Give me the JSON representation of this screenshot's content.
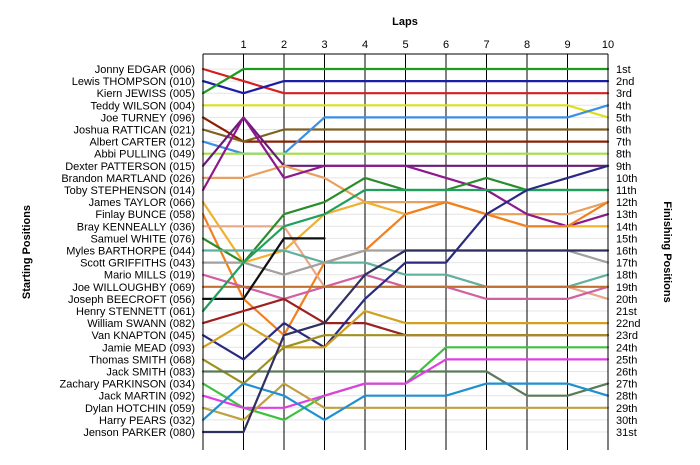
{
  "chart_data": {
    "type": "line",
    "title": "Laps",
    "xlabel": "Laps",
    "ylabel_left": "Starting Positions",
    "ylabel_right": "Finishing Positions",
    "laps": [
      1,
      2,
      3,
      4,
      5,
      6,
      7,
      8,
      9,
      10
    ],
    "xlim": [
      0,
      10
    ],
    "ylim": [
      1,
      31
    ],
    "y_inverted": true,
    "grid": "horizontal",
    "starting_labels": [
      "Jonny EDGAR (006)",
      "Lewis THOMPSON (010)",
      "Kiern JEWISS (005)",
      "Teddy WILSON (004)",
      "Joe TURNEY (096)",
      "Joshua RATTICAN (021)",
      "Albert CARTER (012)",
      "Abbi PULLING (049)",
      "Dexter PATTERSON (015)",
      "Brandon MARTLAND (026)",
      "Toby STEPHENSON (014)",
      "James TAYLOR (066)",
      "Finlay BUNCE (058)",
      "Bray KENNEALLY (036)",
      "Samuel WHITE (076)",
      "Myles BARTHORPE (044)",
      "Scott GRIFFITHS (043)",
      "Mario MILLS (019)",
      "Joe WILLOUGHBY (069)",
      "Joseph BEECROFT (056)",
      "Henry STENNETT (061)",
      "William SWANN (082)",
      "Van KNAPTON (045)",
      "Jamie MEAD (093)",
      "Thomas SMITH (068)",
      "Jack SMITH (083)",
      "Zachary PARKINSON (034)",
      "Jack MARTIN (092)",
      "Dylan HOTCHIN (059)",
      "Harry PEARS (032)",
      "Jenson PARKER (080)"
    ],
    "finishing_labels": [
      "1st",
      "2nd",
      "3rd",
      "4th",
      "5th",
      "6th",
      "7th",
      "8th",
      "9th",
      "10th",
      "11th",
      "12th",
      "13th",
      "14th",
      "15th",
      "16th",
      "17th",
      "18th",
      "19th",
      "20th",
      "21st",
      "22nd",
      "23rd",
      "24th",
      "25th",
      "26th",
      "27th",
      "28th",
      "29th",
      "30th",
      "31st"
    ],
    "series": [
      {
        "driver_index": 0,
        "color": "#d42020",
        "positions": [
          1,
          2,
          3,
          3,
          3,
          3,
          3,
          3,
          3,
          3,
          3
        ]
      },
      {
        "driver_index": 1,
        "color": "#1c1ca8",
        "positions": [
          2,
          3,
          2,
          2,
          2,
          2,
          2,
          2,
          2,
          2,
          2
        ]
      },
      {
        "driver_index": 2,
        "color": "#1c9c1c",
        "positions": [
          3,
          1,
          1,
          1,
          1,
          1,
          1,
          1,
          1,
          1,
          1
        ]
      },
      {
        "driver_index": 3,
        "color": "#dede20",
        "positions": [
          4,
          4,
          4,
          4,
          4,
          4,
          4,
          4,
          4,
          4,
          5
        ]
      },
      {
        "driver_index": 4,
        "color": "#882200",
        "positions": [
          5,
          7,
          7,
          7,
          7,
          7,
          7,
          7,
          7,
          7,
          7
        ]
      },
      {
        "driver_index": 5,
        "color": "#806020",
        "positions": [
          6,
          7,
          6,
          6,
          6,
          6,
          6,
          6,
          6,
          6,
          6
        ]
      },
      {
        "driver_index": 6,
        "color": "#3a8ee6",
        "positions": [
          7,
          8,
          8,
          5,
          5,
          5,
          5,
          5,
          5,
          5,
          4
        ]
      },
      {
        "driver_index": 7,
        "color": "#a0e040",
        "positions": [
          8,
          8,
          8,
          8,
          8,
          8,
          8,
          8,
          8,
          8,
          8
        ]
      },
      {
        "driver_index": 8,
        "color": "#6a1a7a",
        "positions": [
          9,
          5,
          9,
          9,
          9,
          9,
          9,
          9,
          9,
          9,
          9
        ]
      },
      {
        "driver_index": 9,
        "color": "#e8a060",
        "positions": [
          10,
          10,
          9,
          10,
          12,
          12,
          12,
          13,
          13,
          13,
          12
        ]
      },
      {
        "driver_index": 10,
        "color": "#8c1a8c",
        "positions": [
          11,
          5,
          10,
          9,
          9,
          9,
          10,
          11,
          13,
          14,
          13
        ]
      },
      {
        "driver_index": 11,
        "color": "#f0b030",
        "positions": [
          12,
          17,
          16,
          13,
          12,
          13,
          12,
          13,
          14,
          14,
          14
        ]
      },
      {
        "driver_index": 12,
        "color": "#f08020",
        "positions": [
          13,
          20,
          23,
          17,
          16,
          13,
          12,
          13,
          14,
          14,
          12
        ]
      },
      {
        "driver_index": 13,
        "color": "#e8a888",
        "positions": [
          14,
          14,
          14,
          19,
          19,
          19,
          19,
          19,
          19,
          19,
          20
        ]
      },
      {
        "driver_index": 14,
        "color": "#2a8c2a",
        "positions": [
          15,
          17,
          13,
          12,
          10,
          11,
          11,
          10,
          11,
          11,
          11
        ]
      },
      {
        "driver_index": 15,
        "color": "#60b0a0",
        "positions": [
          16,
          16,
          16,
          17,
          17,
          18,
          18,
          19,
          19,
          19,
          18
        ]
      },
      {
        "driver_index": 16,
        "color": "#a0a0a0",
        "positions": [
          17,
          17,
          18,
          17,
          16,
          16,
          16,
          16,
          16,
          16,
          17
        ]
      },
      {
        "driver_index": 17,
        "color": "#d060a0",
        "positions": [
          18,
          19,
          20,
          19,
          18,
          19,
          19,
          20,
          20,
          20,
          19
        ]
      },
      {
        "driver_index": 18,
        "color": "#c07030",
        "positions": [
          19,
          19,
          19,
          19,
          19,
          19,
          19,
          19,
          19,
          19,
          19
        ]
      },
      {
        "driver_index": 19,
        "color": "#101010",
        "positions": [
          20,
          20,
          15,
          15
        ]
      },
      {
        "driver_index": 20,
        "color": "#20a060",
        "positions": [
          21,
          17,
          14,
          13,
          11,
          11,
          11,
          11,
          11,
          11,
          11
        ]
      },
      {
        "driver_index": 21,
        "color": "#9c2020",
        "positions": [
          22,
          21,
          20,
          22,
          22,
          23,
          23,
          23,
          23,
          23,
          23
        ]
      },
      {
        "driver_index": 22,
        "color": "#2a2a80",
        "positions": [
          23,
          25,
          22,
          24,
          20,
          17,
          17,
          13,
          11,
          10,
          9
        ]
      },
      {
        "driver_index": 23,
        "color": "#d0a020",
        "positions": [
          24,
          22,
          24,
          24,
          21,
          22,
          22,
          22,
          22,
          22,
          22
        ]
      },
      {
        "driver_index": 24,
        "color": "#a09020",
        "positions": [
          25,
          27,
          24,
          23,
          23,
          23,
          23,
          23,
          23,
          23,
          23
        ]
      },
      {
        "driver_index": 25,
        "color": "#5a7a5a",
        "positions": [
          26,
          26,
          26,
          26,
          26,
          26,
          26,
          26,
          28,
          28,
          27
        ]
      },
      {
        "driver_index": 26,
        "color": "#40c040",
        "positions": [
          27,
          29,
          30,
          28,
          27,
          27,
          24,
          24,
          24,
          24,
          24
        ]
      },
      {
        "driver_index": 27,
        "color": "#e040e0",
        "positions": [
          28,
          29,
          29,
          28,
          27,
          27,
          25,
          25,
          25,
          25,
          25
        ]
      },
      {
        "driver_index": 28,
        "color": "#c0a040",
        "positions": [
          29,
          30,
          27,
          29,
          29,
          29,
          29,
          29,
          29,
          29,
          29
        ]
      },
      {
        "driver_index": 29,
        "color": "#2090d0",
        "positions": [
          30,
          27,
          28,
          30,
          28,
          28,
          28,
          27,
          27,
          27,
          28
        ]
      },
      {
        "driver_index": 30,
        "color": "#303060",
        "positions": [
          31,
          31,
          23,
          22,
          18,
          16,
          16,
          16,
          16,
          16,
          16
        ]
      }
    ]
  }
}
